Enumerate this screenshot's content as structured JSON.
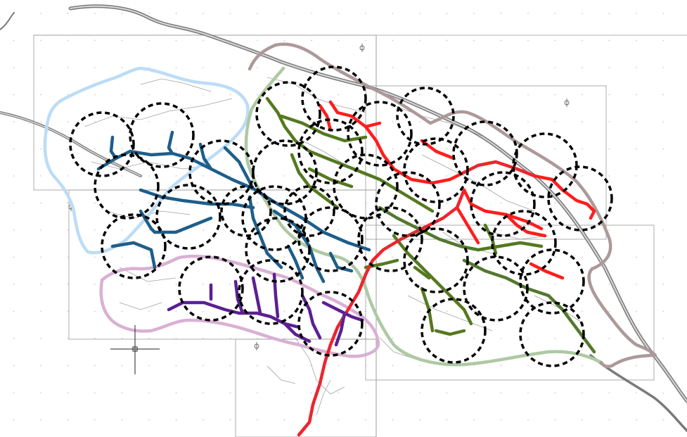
{
  "map": {
    "zones": [
      {
        "id": "zone-northwest",
        "color": "#bcdcf6"
      },
      {
        "id": "zone-north",
        "color": "#aec9a3"
      },
      {
        "id": "zone-northeast",
        "color": "#ad9999"
      },
      {
        "id": "zone-southwest",
        "color": "#d9b0d3"
      },
      {
        "id": "zone-southeast",
        "color": "#a9c8a1"
      }
    ],
    "networks": [
      {
        "id": "network-blue",
        "color": "#1e5e8a"
      },
      {
        "id": "network-green",
        "color": "#55791f"
      },
      {
        "id": "network-red",
        "color": "#ff1d1d"
      },
      {
        "id": "network-purple",
        "color": "#5b1f92"
      }
    ],
    "coverage_circle_count": 42,
    "colors": {
      "background": "#ffffff",
      "basemap_road": "#888888",
      "highway": "#7a7a7a",
      "sheet_frame": "#9a9a9a",
      "coverage_circle": "#000000"
    },
    "icons": [
      "north-arrow-icon",
      "crosshair-cursor-icon"
    ]
  }
}
